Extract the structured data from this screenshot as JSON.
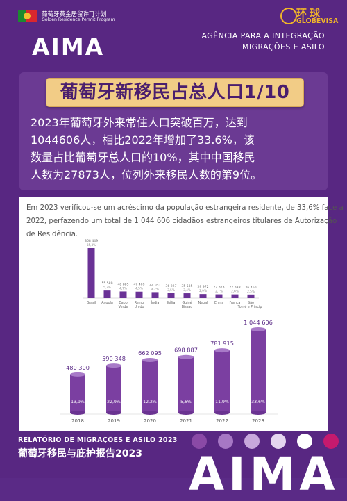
{
  "header": {
    "program_cn": "葡萄牙黄金居留许可计划",
    "program_en": "Golden Residence Permit Program",
    "aima_logo": "AIMA",
    "globe_cn": "环球",
    "globe_en": "GLOBEVISA",
    "agency_line1": "AGÊNCIA PARA A INTEGRAÇÃO",
    "agency_line2": "MIGRAÇÕES E ASILO"
  },
  "title": "葡萄牙新移民占总人口1/10",
  "paragraph": [
    "2023年葡萄牙外来常住人口突破百万，达到",
    "1044606人，相比2022年增加了33.6%，该",
    "数量占比葡萄牙总人口的10%，其中中国移民",
    "人数为27873人，位列外来移民人数的第9位。"
  ],
  "report": {
    "lines": [
      "Em 2023 verificou-se um acréscimo da população estrangeira residente, de 33,6% face a",
      "2022, perfazendo um total de 1 044 606 cidadãos estrangeiros titulares de Autorização",
      "de Residência."
    ]
  },
  "chart_data": [
    {
      "type": "bar",
      "categories": [
        "Brasil",
        "Angola",
        "Cabo Verde",
        "Reino Unido",
        "Índia",
        "Itália",
        "Guiné Bissau",
        "Nepal",
        "China",
        "França",
        "São Tomé e Príncipe"
      ],
      "values": [
        368449,
        55589,
        48885,
        47409,
        44051,
        36227,
        35535,
        29972,
        27873,
        27549,
        26460
      ],
      "labels": [
        "368 449",
        "55 589",
        "48 885",
        "47 409",
        "44 051",
        "36 227",
        "35 535",
        "29 972",
        "27 873",
        "27 549",
        "26 460"
      ],
      "percents": [
        "35,3%",
        "5,3%",
        "4,7%",
        "4,5%",
        "4,2%",
        "3,5%",
        "3,4%",
        "2,9%",
        "2,7%",
        "2,6%",
        "2,5%"
      ]
    },
    {
      "type": "bar",
      "categories": [
        "2018",
        "2019",
        "2020",
        "2021",
        "2022",
        "2023"
      ],
      "values": [
        480300,
        590348,
        662095,
        698887,
        781915,
        1044606
      ],
      "labels": [
        "480 300",
        "590 348",
        "662 095",
        "698 887",
        "781 915",
        "1 044 606"
      ],
      "percents": [
        "13,9%",
        "22,9%",
        "12,2%",
        "5,6%",
        "11,9%",
        "33,6%"
      ]
    }
  ],
  "footer": {
    "line1": "RELATÓRIO DE MIGRAÇÕES E ASILO 2023",
    "line2": "葡萄牙移民与庇护报告2023",
    "aima_big": "AIMA"
  },
  "colors": {
    "background": "#582782",
    "accent": "#f2cc86",
    "bar": "#7b3fa1"
  }
}
